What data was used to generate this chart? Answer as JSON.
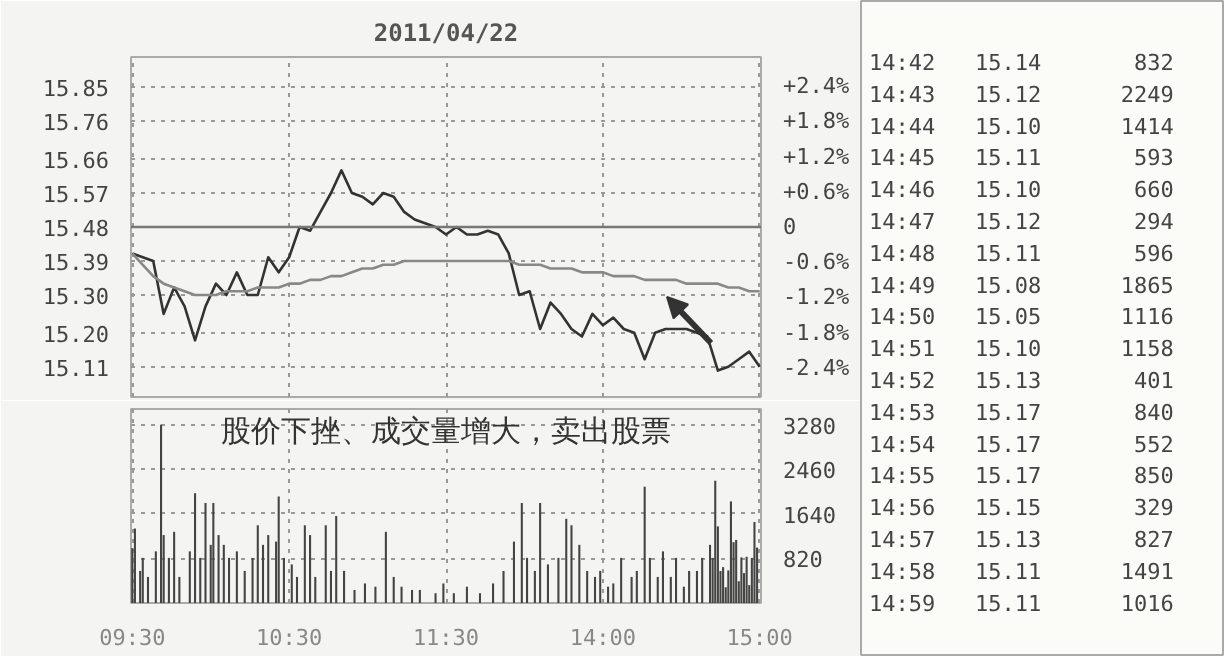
{
  "chart_data": [
    {
      "type": "line",
      "title": "2011/04/22",
      "categories": [
        null,
        null,
        null,
        null,
        null,
        null,
        null,
        null,
        null,
        null,
        null,
        null,
        null,
        null,
        null,
        null,
        null,
        null,
        null,
        null,
        null,
        null,
        null,
        null,
        null,
        null,
        null,
        null,
        null,
        null,
        null,
        null,
        null,
        null,
        null,
        null,
        null,
        null,
        null,
        null,
        null,
        null,
        null,
        null,
        null,
        null,
        null,
        null,
        null,
        null,
        null,
        null,
        null,
        null,
        null,
        null,
        null,
        null,
        null,
        null,
        null
      ],
      "ylim": [
        15.03,
        15.93
      ],
      "yticks": [
        15.85,
        15.76,
        15.66,
        15.57,
        15.48,
        15.39,
        {
          "value": 15.3,
          "label": "15.30"
        },
        {
          "value": 15.2,
          "label": "15.20"
        },
        15.11
      ],
      "y2lim": [
        -2.9,
        2.9
      ],
      "y2ticks": [
        {
          "value": 2.4,
          "label": "+2.4%"
        },
        {
          "value": 1.8,
          "label": "+1.8%"
        },
        {
          "value": 1.2,
          "label": "+1.2%"
        },
        {
          "value": 0.6,
          "label": "+0.6%"
        },
        0,
        {
          "value": -0.6,
          "label": "-0.6%"
        },
        {
          "value": -1.2,
          "label": "-1.2%"
        },
        {
          "value": -1.8,
          "label": "-1.8%"
        },
        {
          "value": -2.4,
          "label": "-2.4%"
        }
      ],
      "ref_lines": [
        {
          "axis": "y",
          "value": 15.48,
          "color": "#777777"
        }
      ],
      "grid": true,
      "tick_labels": "y",
      "line_style": "solid",
      "series": [
        {
          "color": "#333333",
          "values": [
            15.41,
            15.4,
            15.39,
            15.25,
            15.32,
            15.27,
            15.18,
            15.27,
            15.33,
            15.3,
            15.36,
            15.3,
            15.3,
            15.4,
            15.36,
            15.4,
            15.48,
            15.47,
            15.52,
            15.57,
            15.63,
            15.57,
            15.56,
            15.54,
            15.57,
            15.56,
            15.52,
            15.5,
            15.49,
            15.48,
            15.46,
            15.48,
            15.46,
            15.46,
            15.47,
            15.46,
            15.41,
            15.3,
            15.31,
            15.21,
            15.28,
            15.25,
            15.21,
            15.19,
            15.25,
            15.22,
            15.24,
            15.21,
            15.2,
            15.13,
            15.2,
            15.21,
            15.21,
            15.21,
            15.2,
            15.19,
            15.1,
            15.11,
            15.13,
            15.15,
            15.11
          ]
        },
        {
          "color": "#888888",
          "values": [
            15.41,
            15.38,
            15.35,
            15.33,
            15.32,
            15.31,
            15.3,
            15.3,
            15.3,
            15.31,
            15.31,
            15.31,
            15.32,
            15.32,
            15.32,
            15.33,
            15.33,
            15.34,
            15.34,
            15.35,
            15.35,
            15.36,
            15.37,
            15.37,
            15.38,
            15.38,
            15.39,
            15.39,
            15.39,
            15.39,
            15.39,
            15.39,
            15.39,
            15.39,
            15.39,
            15.39,
            15.39,
            15.38,
            15.38,
            15.38,
            15.37,
            15.37,
            15.37,
            15.36,
            15.36,
            15.36,
            15.35,
            15.35,
            15.35,
            15.34,
            15.34,
            15.34,
            15.34,
            15.33,
            15.33,
            15.33,
            15.33,
            15.32,
            15.32,
            15.31,
            15.31
          ]
        }
      ]
    },
    {
      "type": "bar",
      "color": "#444444",
      "ylim": [
        0,
        3570
      ],
      "yticks": [
        820,
        1640,
        2460,
        3280
      ],
      "categories": [
        "09:30",
        null,
        null,
        null,
        null,
        null,
        null,
        null,
        null,
        null,
        null,
        null,
        null,
        null,
        null,
        null,
        null,
        null,
        null,
        null,
        null,
        null,
        null,
        null,
        null,
        null,
        null,
        null,
        null,
        null,
        null,
        null,
        null,
        null,
        null,
        null,
        null,
        null,
        null,
        null,
        null,
        null,
        null,
        null,
        null,
        null,
        null,
        null,
        null,
        null,
        null,
        null,
        null,
        null,
        null,
        null,
        null,
        null,
        null,
        null,
        "10:30",
        null,
        null,
        null,
        null,
        null,
        null,
        null,
        null,
        null,
        null,
        null,
        null,
        null,
        null,
        null,
        null,
        null,
        null,
        null,
        null,
        null,
        null,
        null,
        null,
        null,
        null,
        null,
        null,
        null,
        null,
        null,
        null,
        null,
        null,
        null,
        null,
        null,
        null,
        null,
        null,
        null,
        null,
        null,
        null,
        null,
        null,
        null,
        null,
        null,
        null,
        null,
        null,
        null,
        null,
        null,
        null,
        null,
        null,
        null,
        "11:30",
        null,
        null,
        null,
        null,
        null,
        null,
        null,
        null,
        null,
        null,
        null,
        null,
        null,
        null,
        null,
        null,
        null,
        null,
        null,
        null,
        null,
        null,
        null,
        null,
        null,
        null,
        null,
        null,
        null,
        null,
        null,
        null,
        null,
        null,
        null,
        null,
        null,
        null,
        null,
        null,
        null,
        null,
        null,
        null,
        null,
        null,
        null,
        null,
        null,
        null,
        null,
        null,
        null,
        null,
        null,
        null,
        null,
        null,
        null,
        "14:00",
        null,
        null,
        null,
        null,
        null,
        null,
        null,
        null,
        null,
        null,
        null,
        null,
        null,
        null,
        null,
        null,
        null,
        null,
        null,
        null,
        null,
        null,
        null,
        null,
        null,
        null,
        null,
        null,
        null,
        null,
        null,
        null,
        null,
        null,
        null,
        null,
        null,
        null,
        null,
        null,
        null,
        null,
        null,
        null,
        null,
        null,
        null,
        null,
        null,
        null,
        null,
        null,
        null,
        null,
        null,
        null,
        null,
        null,
        null,
        "15:00"
      ],
      "grid": true,
      "annotations": [
        "股价下挫、成交量增大，卖出股票"
      ],
      "values": [
        1010,
        1370,
        null,
        590,
        830,
        null,
        480,
        null,
        null,
        950,
        null,
        3280,
        1250,
        null,
        830,
        null,
        1310,
        null,
        480,
        null,
        null,
        null,
        950,
        null,
        2020,
        null,
        830,
        null,
        1840,
        null,
        1070,
        1840,
        null,
        1250,
        null,
        1070,
        null,
        830,
        null,
        null,
        950,
        null,
        null,
        590,
        null,
        null,
        830,
        null,
        1430,
        null,
        1070,
        null,
        1250,
        null,
        null,
        1130,
        1960,
        null,
        830,
        null,
        null,
        710,
        null,
        480,
        null,
        null,
        1430,
        null,
        1250,
        null,
        480,
        null,
        null,
        null,
        1430,
        null,
        590,
        null,
        1600,
        null,
        null,
        590,
        null,
        null,
        null,
        240,
        null,
        null,
        null,
        360,
        null,
        null,
        null,
        300,
        null,
        null,
        null,
        1310,
        null,
        null,
        480,
        null,
        null,
        300,
        null,
        null,
        null,
        240,
        null,
        null,
        240,
        null,
        null,
        null,
        null,
        null,
        180,
        null,
        null,
        360,
        null,
        null,
        null,
        180,
        null,
        null,
        null,
        null,
        300,
        null,
        null,
        null,
        null,
        180,
        null,
        null,
        null,
        null,
        360,
        null,
        null,
        null,
        590,
        null,
        null,
        null,
        1130,
        null,
        null,
        1840,
        null,
        830,
        null,
        null,
        590,
        null,
        1840,
        null,
        null,
        710,
        null,
        null,
        null,
        830,
        null,
        null,
        1550,
        null,
        1430,
        null,
        null,
        1070,
        null,
        null,
        590,
        null,
        null,
        480,
        null,
        590,
        null,
        null,
        300,
        null,
        360,
        null,
        null,
        830,
        null,
        null,
        null,
        480,
        null,
        590,
        null,
        null,
        2140,
        null,
        830,
        null,
        null,
        480,
        null,
        950,
        null,
        null,
        480,
        null,
        830,
        null,
        null,
        300,
        null,
        590,
        null,
        null,
        590,
        null,
        830,
        null,
        null,
        1070,
        830,
        2250,
        1410,
        590,
        660,
        290,
        600,
        1870,
        1120,
        1160,
        400,
        840,
        550,
        850,
        330,
        830,
        1490,
        1020,
        null
      ]
    },
    {
      "type": "other",
      "annotations": [
        "14:42 15.14 832",
        "14:43 15.12 2249",
        "14:44 15.10 1414",
        "14:45 15.11 593",
        "14:46 15.10 660",
        "14:47 15.12 294",
        "14:48 15.11 596",
        "14:49 15.08 1865",
        "14:50 15.05 1116",
        "14:51 15.10 1158",
        "14:52 15.13 401",
        "14:53 15.17 840",
        "14:54 15.17 552",
        "14:55 15.17 850",
        "14:56 15.15 329",
        "14:57 15.13 827",
        "14:58 15.11 1491",
        "14:59 15.11 1016"
      ]
    }
  ]
}
